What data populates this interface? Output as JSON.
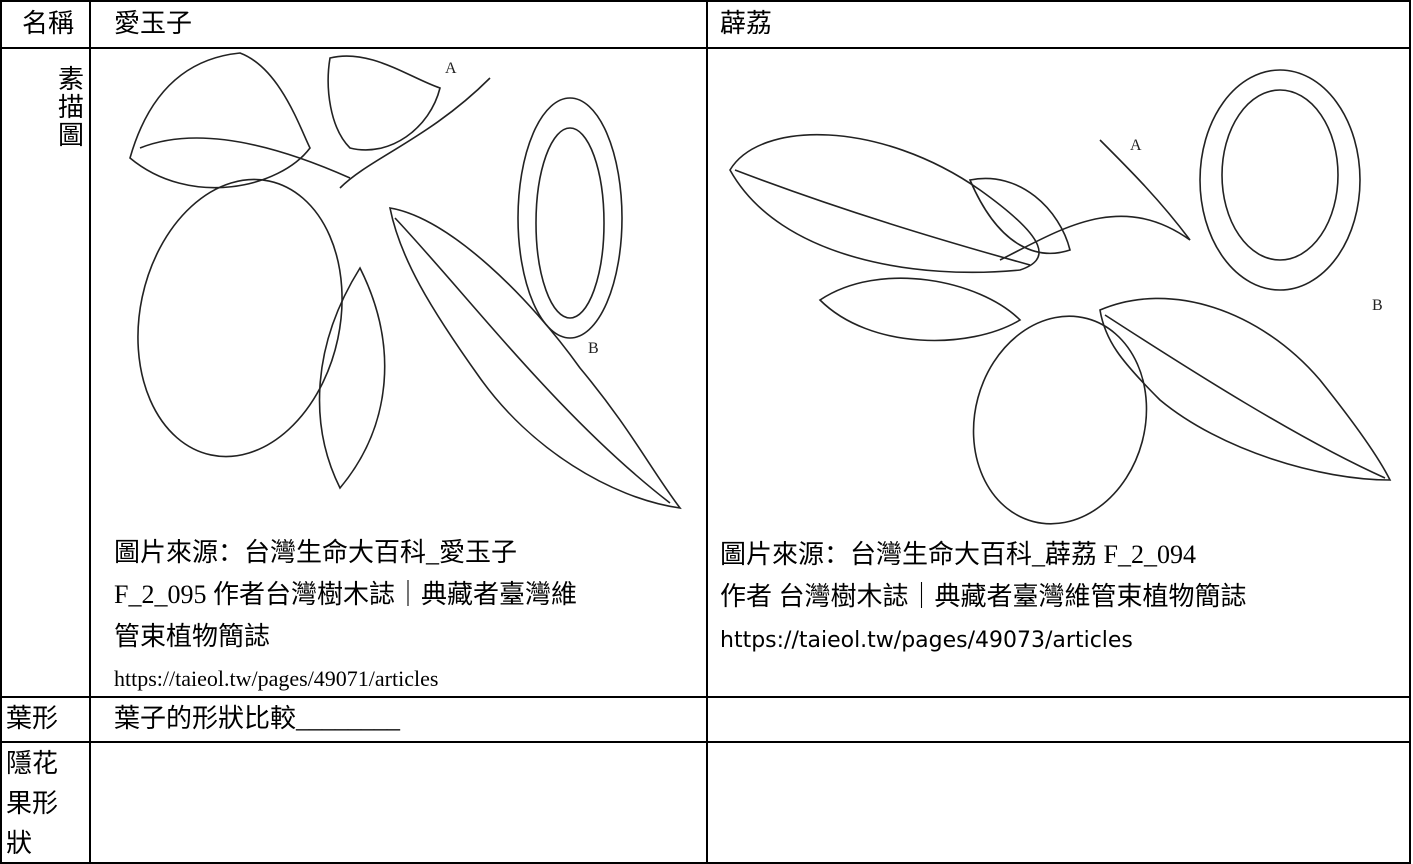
{
  "table": {
    "header": [
      "名稱",
      "愛玉子",
      "薜荔"
    ],
    "sketch_row": {
      "label": "素描圖",
      "left": {
        "figure_labels": [
          "A",
          "B"
        ],
        "caption": [
          "圖片來源：台灣生命大百科_愛玉子",
          "F_2_095 作者台灣樹木誌｜典藏者臺灣維",
          "管束植物簡誌",
          "https://taieol.tw/pages/49071/articles"
        ]
      },
      "right": {
        "figure_labels": [
          "A",
          "B"
        ],
        "caption": [
          "圖片來源：台灣生命大百科_薜荔 F_2_094",
          "作者 台灣樹木誌｜典藏者臺灣維管束植物簡誌",
          "https://taieol.tw/pages/49073/articles"
        ]
      }
    },
    "leaf_row": {
      "label": "葉形",
      "left": "葉子的形狀比較________"
    },
    "fruit_row": {
      "label": "隱花果形狀"
    }
  }
}
